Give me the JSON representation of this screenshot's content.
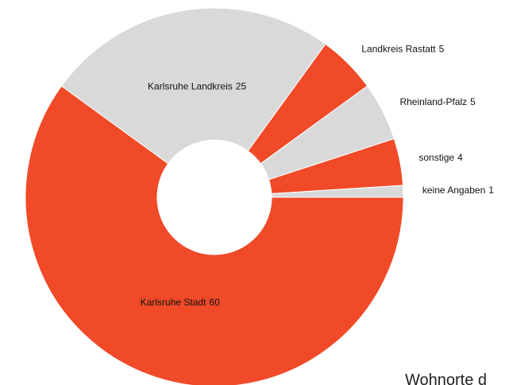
{
  "chart_data": {
    "type": "donut",
    "title": "Wohnorte d",
    "categories": [
      "Karlsruhe Stadt",
      "Karlsruhe Landkreis",
      "Landkreis Rastatt",
      "Rheinland-Pfalz",
      "sonstige",
      "keine Angaben"
    ],
    "values": [
      60,
      25,
      5,
      5,
      4,
      1
    ],
    "colors": [
      "#f04a28",
      "#d9d9d9",
      "#f04a28",
      "#d9d9d9",
      "#f04a28",
      "#d9d9d9"
    ]
  }
}
